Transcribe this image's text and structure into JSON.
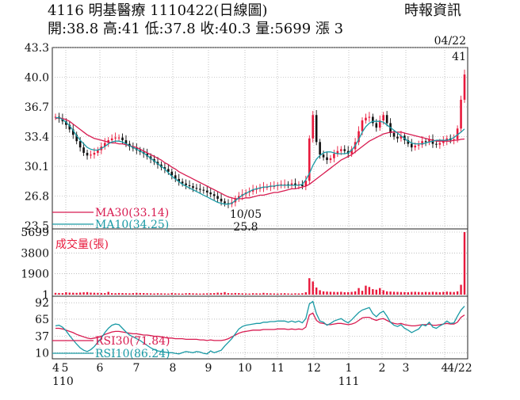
{
  "header": {
    "title": "4116  明基醫療 1110422(日線圖)",
    "source": "時報資訊",
    "quote": "開:38.8 高:41 低:37.8 收:40.3 量:5699 漲 3"
  },
  "chart_data": {
    "type": "candlestick",
    "colors": {
      "up": "#e8193c",
      "down": "#111111",
      "ma30": "#d81b50",
      "ma10": "#1a9aa5",
      "rsi30": "#d81b50",
      "rsi10": "#1a9aa5",
      "volume": "#e8193c",
      "grid": "#999999"
    },
    "price_panel": {
      "yticks": [
        "43.3",
        "40.0",
        "36.7",
        "33.4",
        "30.1",
        "26.8",
        "23.5"
      ],
      "ylim": [
        23.5,
        43.3
      ],
      "last_date_label": "04/22",
      "last_high_label": "41",
      "low_date_label": "10/05",
      "low_value_label": "25.8",
      "legend": [
        "MA30(33.14)",
        "MA10(34.25)"
      ],
      "close": [
        35.6,
        35.4,
        35.1,
        34.7,
        34.2,
        33.6,
        32.9,
        32.2,
        31.6,
        31.3,
        31.4,
        31.6,
        31.9,
        32.3,
        32.7,
        33.0,
        33.2,
        33.3,
        33.3,
        33.0,
        32.6,
        32.3,
        32.1,
        31.9,
        31.7,
        31.5,
        31.2,
        30.9,
        30.6,
        30.3,
        30.0,
        29.8,
        29.5,
        29.1,
        28.7,
        28.4,
        28.2,
        28.0,
        27.9,
        27.7,
        27.6,
        27.5,
        27.4,
        27.2,
        27.0,
        26.8,
        26.5,
        26.2,
        26.0,
        25.9,
        26.1,
        26.5,
        26.8,
        27.0,
        27.2,
        27.3,
        27.5,
        27.6,
        27.7,
        27.8,
        27.8,
        27.9,
        27.9,
        28.0,
        28.1,
        28.1,
        28.0,
        28.2,
        28.0,
        28.1,
        27.9,
        28.5,
        33.2,
        35.8,
        32.8,
        31.4,
        31.1,
        30.8,
        31.0,
        31.5,
        31.8,
        32.0,
        31.8,
        31.5,
        32.0,
        32.8,
        34.0,
        35.2,
        35.5,
        35.6,
        34.9,
        34.4,
        35.2,
        35.8,
        34.9,
        33.8,
        33.4,
        33.2,
        33.5,
        33.0,
        32.6,
        32.2,
        32.4,
        32.5,
        32.9,
        32.8,
        33.1,
        32.6,
        32.5,
        32.7,
        32.9,
        33.2,
        33.0,
        33.1,
        34.3,
        37.5,
        40.3
      ],
      "ma30": [
        35.4,
        35.5,
        35.4,
        35.3,
        35.1,
        34.8,
        34.5,
        34.2,
        33.9,
        33.6,
        33.4,
        33.2,
        33.1,
        33.0,
        32.9,
        32.8,
        32.7,
        32.7,
        32.6,
        32.6,
        32.5,
        32.4,
        32.3,
        32.2,
        32.0,
        31.8,
        31.6,
        31.4,
        31.2,
        31.0,
        30.8,
        30.5,
        30.3,
        30.0,
        29.8,
        29.5,
        29.3,
        29.1,
        28.9,
        28.7,
        28.5,
        28.3,
        28.1,
        27.9,
        27.7,
        27.5,
        27.3,
        27.1,
        26.9,
        26.7,
        26.6,
        26.5,
        26.5,
        26.5,
        26.6,
        26.6,
        26.7,
        26.8,
        26.9,
        26.9,
        27.0,
        27.1,
        27.2,
        27.2,
        27.3,
        27.4,
        27.5,
        27.6,
        27.6,
        27.7,
        27.8,
        27.9,
        28.1,
        28.4,
        28.7,
        29.0,
        29.3,
        29.6,
        29.9,
        30.2,
        30.5,
        30.8,
        31.0,
        31.2,
        31.4,
        31.7,
        32.0,
        32.3,
        32.6,
        32.9,
        33.1,
        33.3,
        33.5,
        33.7,
        33.8,
        33.9,
        33.9,
        33.9,
        33.9,
        33.8,
        33.7,
        33.6,
        33.5,
        33.4,
        33.3,
        33.2,
        33.1,
        33.0,
        32.9,
        32.9,
        32.9,
        32.9,
        32.9,
        33.0,
        33.0,
        33.1,
        33.14
      ],
      "ma10": [
        35.5,
        35.5,
        35.3,
        35.0,
        34.6,
        34.1,
        33.5,
        33.0,
        32.6,
        32.2,
        32.0,
        31.9,
        31.9,
        32.1,
        32.3,
        32.6,
        32.8,
        32.9,
        32.9,
        32.8,
        32.6,
        32.4,
        32.2,
        32.0,
        31.8,
        31.6,
        31.3,
        31.0,
        30.7,
        30.4,
        30.1,
        29.8,
        29.4,
        29.0,
        28.7,
        28.4,
        28.1,
        27.9,
        27.7,
        27.5,
        27.3,
        27.1,
        26.9,
        26.7,
        26.5,
        26.3,
        26.1,
        26.0,
        25.9,
        25.9,
        26.0,
        26.3,
        26.6,
        26.9,
        27.1,
        27.3,
        27.5,
        27.6,
        27.7,
        27.8,
        27.8,
        27.9,
        27.9,
        28.0,
        28.0,
        28.0,
        28.0,
        28.0,
        28.0,
        28.0,
        28.1,
        28.6,
        29.3,
        30.2,
        30.9,
        31.3,
        31.6,
        31.7,
        31.7,
        31.6,
        31.5,
        31.5,
        31.5,
        31.6,
        31.9,
        32.4,
        33.1,
        33.9,
        34.5,
        34.9,
        35.1,
        35.1,
        35.1,
        35.0,
        34.7,
        34.4,
        34.1,
        33.8,
        33.5,
        33.2,
        32.9,
        32.7,
        32.6,
        32.6,
        32.6,
        32.7,
        32.8,
        32.9,
        33.0,
        33.0,
        33.0,
        33.0,
        33.1,
        33.3,
        33.6,
        33.9,
        34.25
      ]
    },
    "volume_panel": {
      "label": "成交量(張)",
      "yticks": [
        "5699",
        "3800",
        "1900",
        "1"
      ],
      "ylim": [
        0,
        5699
      ],
      "values": [
        160,
        150,
        140,
        220,
        180,
        170,
        160,
        190,
        210,
        230,
        180,
        170,
        160,
        150,
        140,
        250,
        140,
        130,
        150,
        140,
        130,
        120,
        140,
        160,
        150,
        140,
        130,
        120,
        110,
        130,
        120,
        110,
        100,
        150,
        120,
        110,
        100,
        130,
        140,
        120,
        110,
        100,
        110,
        120,
        130,
        140,
        180,
        160,
        230,
        140,
        130,
        150,
        140,
        120,
        110,
        100,
        130,
        120,
        110,
        160,
        130,
        120,
        110,
        100,
        120,
        130,
        110,
        100,
        120,
        110,
        130,
        220,
        1500,
        1200,
        650,
        400,
        300,
        280,
        260,
        250,
        240,
        260,
        220,
        230,
        250,
        300,
        600,
        350,
        820,
        700,
        500,
        450,
        600,
        400,
        300,
        280,
        260,
        250,
        240,
        230,
        220,
        250,
        260,
        240,
        230,
        250,
        230,
        260,
        240,
        220,
        250,
        280,
        250,
        240,
        300,
        900,
        5699
      ]
    },
    "rsi_panel": {
      "yticks": [
        "92",
        "65",
        "37",
        "10"
      ],
      "ylim": [
        0,
        100
      ],
      "legend": [
        "RSI30(71.84)",
        "RSI10(86.24)"
      ],
      "rsi30": [
        50,
        50,
        49,
        47,
        45,
        43,
        40,
        38,
        36,
        34,
        33,
        34,
        35,
        37,
        40,
        42,
        44,
        45,
        45,
        44,
        43,
        42,
        41,
        41,
        40,
        39,
        39,
        38,
        37,
        37,
        36,
        35,
        34,
        34,
        33,
        33,
        33,
        32,
        32,
        32,
        32,
        31,
        31,
        30,
        31,
        30,
        30,
        30,
        31,
        33,
        36,
        39,
        42,
        44,
        45,
        46,
        47,
        47,
        47,
        48,
        48,
        48,
        48,
        49,
        49,
        49,
        48,
        49,
        48,
        49,
        48,
        52,
        72,
        75,
        63,
        59,
        58,
        56,
        56,
        57,
        58,
        58,
        57,
        56,
        57,
        59,
        63,
        67,
        68,
        68,
        65,
        63,
        65,
        66,
        63,
        60,
        58,
        57,
        58,
        56,
        55,
        54,
        54,
        55,
        56,
        56,
        57,
        55,
        55,
        56,
        57,
        58,
        57,
        57,
        60,
        68,
        71.84
      ],
      "rsi10": [
        54,
        55,
        52,
        46,
        38,
        31,
        24,
        18,
        14,
        12,
        15,
        20,
        27,
        34,
        43,
        50,
        55,
        57,
        56,
        50,
        44,
        39,
        36,
        33,
        30,
        26,
        22,
        18,
        15,
        13,
        12,
        11,
        10,
        10,
        9,
        8,
        10,
        12,
        11,
        10,
        12,
        11,
        9,
        8,
        13,
        10,
        12,
        14,
        21,
        27,
        33,
        41,
        49,
        53,
        55,
        56,
        57,
        58,
        58,
        60,
        60,
        61,
        61,
        62,
        62,
        62,
        60,
        62,
        60,
        62,
        59,
        66,
        90,
        94,
        74,
        62,
        60,
        55,
        58,
        62,
        64,
        66,
        62,
        59,
        64,
        70,
        76,
        80,
        82,
        84,
        74,
        69,
        75,
        78,
        70,
        60,
        55,
        53,
        56,
        50,
        47,
        43,
        46,
        49,
        56,
        54,
        60,
        52,
        50,
        54,
        57,
        62,
        58,
        59,
        70,
        80,
        86.24
      ]
    },
    "x_axis": {
      "labels": [
        "4",
        "5",
        "6",
        "7",
        "8",
        "9",
        "10",
        "11",
        "12",
        "1",
        "2",
        "3",
        "4",
        "4/22"
      ],
      "year_labels": [
        "110",
        "111"
      ]
    }
  }
}
